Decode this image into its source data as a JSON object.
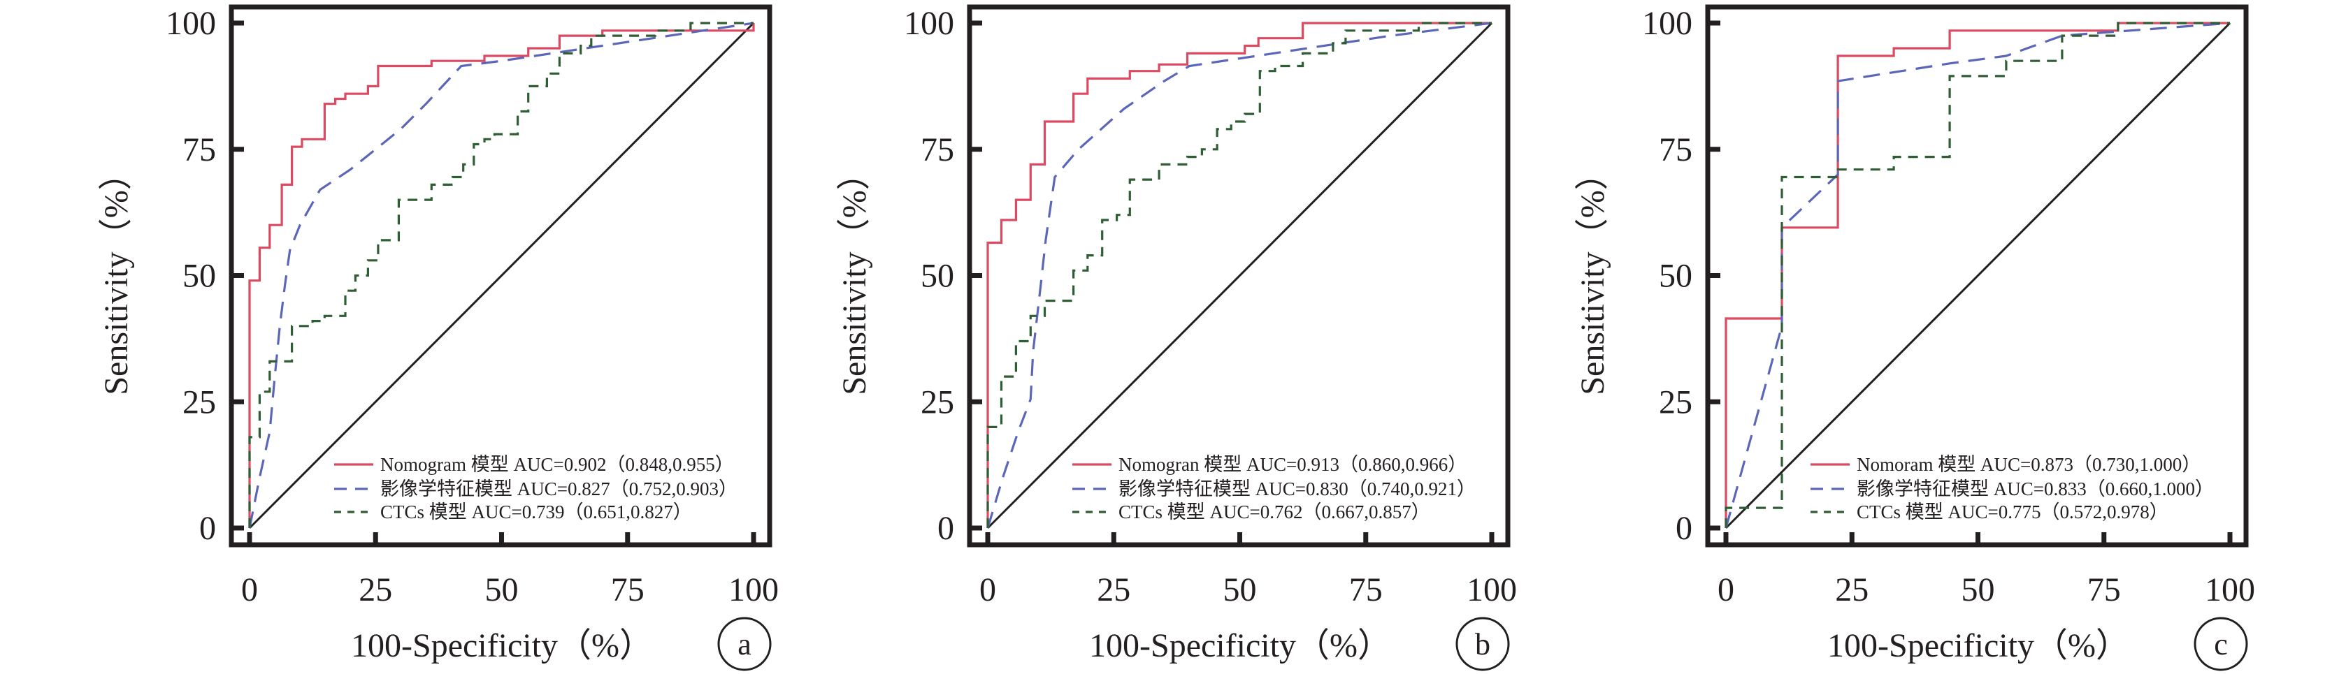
{
  "chart_data": [
    {
      "type": "line",
      "panel_label": "a",
      "xlabel": "100-Specificity（%）",
      "ylabel": "Sensitivity（%）",
      "xlim": [
        0,
        100
      ],
      "ylim": [
        0,
        100
      ],
      "xticks": [
        "0",
        "25",
        "50",
        "75",
        "100"
      ],
      "yticks": [
        "0",
        "25",
        "50",
        "75",
        "100"
      ],
      "grid": false,
      "legend_position": "bottom-right",
      "reference_line": {
        "x": [
          0,
          100
        ],
        "y": [
          0,
          100
        ],
        "color": "#231f20"
      },
      "series": [
        {
          "name": "Nomogram 模型 AUC=0.902（0.848,0.955）",
          "color": "#dc4a62",
          "style": "solid",
          "x": [
            0,
            0,
            2,
            2,
            4,
            4,
            6.4,
            6.4,
            8.4,
            8.4,
            10.4,
            10.4,
            14.9,
            14.9,
            17,
            17,
            19,
            19,
            23.5,
            23.5,
            25.5,
            25.5,
            36.1,
            36.1,
            46.6,
            46.6,
            55.3,
            55.3,
            61.5,
            61.5,
            70,
            70,
            100,
            100
          ],
          "y": [
            0,
            49,
            49,
            55.5,
            55.5,
            60,
            60,
            68,
            68,
            75.5,
            75.5,
            77,
            77,
            84,
            84,
            85,
            85,
            86,
            86,
            87.5,
            87.5,
            91.5,
            91.5,
            92.5,
            92.5,
            93.5,
            93.5,
            95,
            95,
            97.5,
            97.5,
            98.5,
            98.5,
            100
          ]
        },
        {
          "name": "影像学特征模型 AUC=0.827（0.752,0.903）",
          "color": "#5b66b8",
          "style": "long-dash",
          "x": [
            0,
            2,
            4,
            5,
            6,
            7,
            8,
            10,
            14,
            20,
            30,
            35,
            42,
            50,
            60,
            70,
            80,
            90,
            100
          ],
          "y": [
            0,
            10,
            19,
            30,
            40,
            48,
            55,
            60,
            67,
            71,
            79,
            84,
            91.5,
            92.5,
            94,
            95.5,
            97,
            98.5,
            100
          ]
        },
        {
          "name": "CTCs 模型 AUC=0.739（0.651,0.827）",
          "color": "#2f5e35",
          "style": "short-dash",
          "x": [
            0,
            0,
            2,
            2,
            4,
            4,
            8.4,
            8.4,
            12.5,
            12.5,
            14.9,
            14.9,
            19,
            19,
            21,
            21,
            23.5,
            23.5,
            25.5,
            25.5,
            29.6,
            29.6,
            36.1,
            36.1,
            40.3,
            40.3,
            42.4,
            42.4,
            44.5,
            44.5,
            46.6,
            46.6,
            48.6,
            48.6,
            53.2,
            53.2,
            55.3,
            55.3,
            59,
            59,
            61.5,
            61.5,
            65.7,
            65.7,
            67.8,
            67.8,
            80.5,
            80.5,
            87.5,
            87.5,
            100
          ],
          "y": [
            0,
            18,
            18,
            27,
            27,
            33,
            33,
            40,
            40,
            41,
            41,
            42,
            42,
            47,
            47,
            50,
            50,
            53,
            53,
            57,
            57,
            65,
            65,
            68,
            68,
            69.5,
            69.5,
            72,
            72,
            76,
            76,
            77,
            77,
            78,
            78,
            82.5,
            82.5,
            87.5,
            87.5,
            90,
            90,
            94,
            94,
            95.5,
            95.5,
            97.5,
            97.5,
            98.5,
            98.5,
            100,
            100
          ]
        }
      ]
    },
    {
      "type": "line",
      "panel_label": "b",
      "xlabel": "100-Specificity（%）",
      "ylabel": "Sensitivity（%）",
      "xlim": [
        0,
        100
      ],
      "ylim": [
        0,
        100
      ],
      "xticks": [
        "0",
        "25",
        "50",
        "75",
        "100"
      ],
      "yticks": [
        "0",
        "25",
        "50",
        "75",
        "100"
      ],
      "grid": false,
      "legend_position": "bottom-right",
      "reference_line": {
        "x": [
          0,
          100
        ],
        "y": [
          0,
          100
        ],
        "color": "#231f20"
      },
      "series": [
        {
          "name": "Nomogran 模型 AUC=0.913（0.860,0.966）",
          "color": "#dc4a62",
          "style": "solid",
          "x": [
            0,
            0,
            2.7,
            2.7,
            5.6,
            5.6,
            8.5,
            8.5,
            11.3,
            11.3,
            17,
            17,
            19.8,
            19.8,
            28.2,
            28.2,
            34,
            34,
            39.6,
            39.6,
            51,
            51,
            53.7,
            53.7,
            62.5,
            62.5,
            100
          ],
          "y": [
            0,
            56.5,
            56.5,
            61,
            61,
            65,
            65,
            72,
            72,
            80.5,
            80.5,
            86,
            86,
            89,
            89,
            90.5,
            90.5,
            91.8,
            91.8,
            94,
            94,
            95.5,
            95.5,
            97,
            97,
            100,
            100
          ]
        },
        {
          "name": "影像学特征模型 AUC=0.830（0.740,0.921）",
          "color": "#5b66b8",
          "style": "long-dash",
          "x": [
            0,
            3,
            6,
            8.5,
            9,
            10.5,
            11.5,
            13.3,
            18,
            27,
            35,
            40,
            60,
            80,
            100
          ],
          "y": [
            0,
            10,
            19,
            25.5,
            35,
            48,
            57,
            69.5,
            75,
            83,
            88.5,
            91.5,
            94.5,
            97.5,
            100
          ]
        },
        {
          "name": "CTCs 模型 AUC=0.762（0.667,0.857）",
          "color": "#2f5e35",
          "style": "short-dash",
          "x": [
            0,
            0,
            2.7,
            2.7,
            5.6,
            5.6,
            8.5,
            8.5,
            11.3,
            11.3,
            17,
            17,
            19.8,
            19.8,
            22.7,
            22.7,
            25.6,
            25.6,
            28.2,
            28.2,
            34,
            34,
            39.6,
            39.6,
            42.5,
            42.5,
            45.5,
            45.5,
            48.3,
            48.3,
            51,
            51,
            54,
            54,
            57,
            57,
            62.5,
            62.5,
            68.5,
            68.5,
            71,
            71,
            85.5,
            85.5,
            100
          ],
          "y": [
            0,
            20,
            20,
            30,
            30,
            37,
            37,
            42,
            42,
            45,
            45,
            51,
            51,
            54,
            54,
            61,
            61,
            62,
            62,
            69,
            69,
            72,
            72,
            73.5,
            73.5,
            75,
            75,
            79,
            79,
            80.5,
            80.5,
            82,
            82,
            90.5,
            90.5,
            91.5,
            91.5,
            94,
            94,
            96,
            96,
            98.5,
            98.5,
            100,
            100
          ]
        }
      ]
    },
    {
      "type": "line",
      "panel_label": "c",
      "xlabel": "100-Specificity（%）",
      "ylabel": "Sensitivity（%）",
      "xlim": [
        0,
        100
      ],
      "ylim": [
        0,
        100
      ],
      "xticks": [
        "0",
        "25",
        "50",
        "75",
        "100"
      ],
      "yticks": [
        "0",
        "25",
        "50",
        "75",
        "100"
      ],
      "grid": false,
      "legend_position": "bottom-right",
      "reference_line": {
        "x": [
          0,
          100
        ],
        "y": [
          0,
          100
        ],
        "color": "#231f20"
      },
      "series": [
        {
          "name": "Nomoram 模型 AUC=0.873（0.730,1.000）",
          "color": "#dc4a62",
          "style": "solid",
          "x": [
            0,
            0,
            11.1,
            11.1,
            22.2,
            22.2,
            33.3,
            33.3,
            44.4,
            44.4,
            77.8,
            77.8,
            100
          ],
          "y": [
            0,
            41.5,
            41.5,
            59.5,
            59.5,
            93.5,
            93.5,
            95,
            95,
            98.5,
            98.5,
            100,
            100
          ]
        },
        {
          "name": "影像学特征模型 AUC=0.833（0.660,1.000）",
          "color": "#5b66b8",
          "style": "long-dash",
          "x": [
            0,
            11.1,
            11.1,
            22.2,
            22.2,
            44.4,
            55.6,
            66.7,
            100
          ],
          "y": [
            0,
            40,
            59.5,
            70,
            88.5,
            92,
            93.5,
            97.5,
            100
          ]
        },
        {
          "name": "CTCs 模型 AUC=0.775（0.572,0.978）",
          "color": "#2f5e35",
          "style": "short-dash",
          "x": [
            0,
            0,
            11.1,
            11.1,
            22.2,
            22.2,
            33.3,
            33.3,
            44.4,
            44.4,
            55.6,
            55.6,
            66.7,
            66.7,
            77.8,
            77.8,
            100
          ],
          "y": [
            0,
            4,
            4,
            69.5,
            69.5,
            71,
            71,
            73.5,
            73.5,
            89.5,
            89.5,
            92.5,
            92.5,
            97.5,
            97.5,
            100,
            100
          ]
        }
      ]
    }
  ]
}
